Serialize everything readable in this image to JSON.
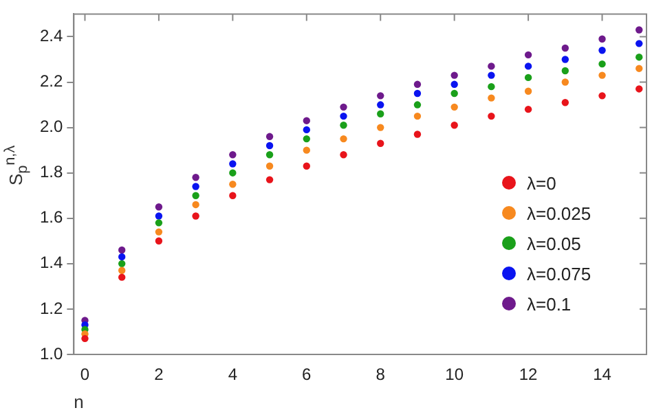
{
  "chart_data": {
    "type": "scatter",
    "xlabel": "n",
    "ylabel": "S$_{p}$$^{n,λ}$",
    "x": [
      0,
      1,
      2,
      3,
      4,
      5,
      6,
      7,
      8,
      9,
      10,
      11,
      12,
      13,
      14,
      15
    ],
    "series": [
      {
        "name": "λ=0",
        "color": "#e8141b",
        "values": [
          1.07,
          1.34,
          1.5,
          1.61,
          1.7,
          1.77,
          1.83,
          1.88,
          1.93,
          1.97,
          2.01,
          2.05,
          2.08,
          2.11,
          2.14,
          2.17
        ]
      },
      {
        "name": "λ=0.025",
        "color": "#f7891f",
        "values": [
          1.09,
          1.37,
          1.54,
          1.66,
          1.75,
          1.83,
          1.9,
          1.95,
          2.0,
          2.05,
          2.09,
          2.13,
          2.16,
          2.2,
          2.23,
          2.26
        ]
      },
      {
        "name": "λ=0.05",
        "color": "#1aa01a",
        "values": [
          1.11,
          1.4,
          1.58,
          1.7,
          1.8,
          1.88,
          1.95,
          2.01,
          2.06,
          2.1,
          2.15,
          2.18,
          2.22,
          2.25,
          2.28,
          2.31
        ]
      },
      {
        "name": "λ=0.075",
        "color": "#0a14f0",
        "values": [
          1.13,
          1.43,
          1.61,
          1.74,
          1.84,
          1.92,
          1.99,
          2.05,
          2.1,
          2.15,
          2.19,
          2.23,
          2.27,
          2.3,
          2.34,
          2.37
        ]
      },
      {
        "name": "λ=0.1",
        "color": "#6e1a8c",
        "values": [
          1.15,
          1.46,
          1.65,
          1.78,
          1.88,
          1.96,
          2.03,
          2.09,
          2.14,
          2.19,
          2.23,
          2.27,
          2.32,
          2.35,
          2.39,
          2.43
        ]
      }
    ],
    "xlim": [
      -0.3,
      15.2
    ],
    "xticks": [
      0,
      2,
      4,
      6,
      8,
      10,
      12,
      14
    ],
    "ylim": [
      1,
      2.5
    ],
    "yticks": [
      {
        "value": 1,
        "label": "1.0"
      },
      1.2,
      1.4,
      1.6,
      1.8,
      {
        "value": 2,
        "label": "2.0"
      },
      2.2,
      2.4
    ],
    "grid": false,
    "legend": "right",
    "marker": "circle"
  }
}
